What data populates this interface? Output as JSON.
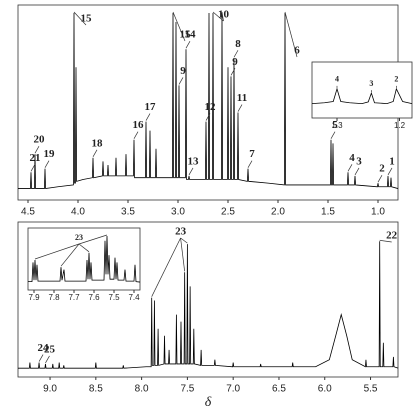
{
  "chart_data": [
    {
      "type": "line",
      "color": "#000",
      "xlim": [
        4.6,
        0.8
      ],
      "ylim": [
        0,
        100
      ],
      "xticks": [
        4.5,
        {
          "value": 4,
          "label": "4.0"
        },
        3.5,
        {
          "value": 3,
          "label": "3.0"
        },
        2.5,
        {
          "value": 2,
          "label": "2.0"
        },
        1.5,
        {
          "value": 1,
          "label": "1.0"
        }
      ],
      "x": [
        4.6,
        4.476,
        4.47,
        4.464,
        4.436,
        4.43,
        4.424,
        4.336,
        4.33,
        4.324,
        4.2,
        4.046,
        4.04,
        4.034,
        4.026,
        4.02,
        4.014,
        3.95,
        3.856,
        3.85,
        3.844,
        3.756,
        3.75,
        3.744,
        3.706,
        3.7,
        3.694,
        3.626,
        3.62,
        3.614,
        3.526,
        3.52,
        3.514,
        3.446,
        3.44,
        3.434,
        3.326,
        3.32,
        3.314,
        3.286,
        3.28,
        3.274,
        3.226,
        3.22,
        3.214,
        3.1,
        3.056,
        3.05,
        3.044,
        3.026,
        3.02,
        3.014,
        2.996,
        2.99,
        2.984,
        2.926,
        2.92,
        2.914,
        2.896,
        2.89,
        2.884,
        2.8,
        2.726,
        2.72,
        2.714,
        2.696,
        2.69,
        2.684,
        2.656,
        2.65,
        2.644,
        2.566,
        2.56,
        2.554,
        2.506,
        2.5,
        2.494,
        2.476,
        2.47,
        2.464,
        2.446,
        2.44,
        2.434,
        2.406,
        2.4,
        2.394,
        2.306,
        2.3,
        2.294,
        2.1,
        1.936,
        1.93,
        1.924,
        1.7,
        1.476,
        1.47,
        1.464,
        1.456,
        1.45,
        1.444,
        1.306,
        1.3,
        1.294,
        1.236,
        1.23,
        1.224,
        1.006,
        1.0,
        0.994,
        0.906,
        0.9,
        0.894,
        0.876,
        0.87,
        0.864,
        0.8
      ],
      "values": [
        3,
        3,
        12,
        3,
        3,
        22,
        3,
        3,
        14,
        3,
        4,
        5,
        100,
        6,
        6,
        70,
        7,
        8,
        9,
        20,
        9,
        10,
        18,
        10,
        10,
        16,
        10,
        10,
        20,
        10,
        10,
        22,
        10,
        10,
        30,
        9,
        9,
        40,
        9,
        9,
        35,
        9,
        9,
        25,
        9,
        9,
        9,
        100,
        9,
        9,
        95,
        9,
        9,
        60,
        9,
        9,
        80,
        8,
        8,
        10,
        8,
        8,
        8,
        40,
        8,
        8,
        100,
        8,
        8,
        100,
        8,
        8,
        100,
        8,
        8,
        70,
        8,
        8,
        65,
        8,
        8,
        75,
        8,
        8,
        45,
        8,
        7,
        14,
        7,
        6,
        5,
        100,
        5,
        5,
        5,
        30,
        5,
        5,
        28,
        5,
        5,
        12,
        5,
        5,
        10,
        5,
        4,
        6,
        4,
        4,
        10,
        4,
        4,
        9,
        4,
        3
      ],
      "annotations": [
        {
          "text": "21",
          "x": 4.47
        },
        {
          "text": "20",
          "x": 4.43
        },
        {
          "text": "19",
          "x": 4.33
        },
        {
          "text": "15",
          "x": 4.04
        },
        {
          "text": "18",
          "x": 3.85
        },
        {
          "text": "16",
          "x": 3.44
        },
        {
          "text": "17",
          "x": 3.32
        },
        {
          "text": "15",
          "x": 3.05
        },
        {
          "text": "9",
          "x": 2.99
        },
        {
          "text": "14",
          "x": 2.92
        },
        {
          "text": "13",
          "x": 2.89
        },
        {
          "text": "12",
          "x": 2.72
        },
        {
          "text": "10",
          "x": [
            2.65,
            2.56
          ]
        },
        {
          "text": "9",
          "x": 2.47
        },
        {
          "text": "8",
          "x": 2.44
        },
        {
          "text": "11",
          "x": 2.4
        },
        {
          "text": "7",
          "x": 2.3
        },
        {
          "text": "6",
          "x": 1.93
        },
        {
          "text": "5",
          "x": 1.47
        },
        {
          "text": "4",
          "x": 1.3
        },
        {
          "text": "3",
          "x": 1.23
        },
        {
          "text": "2",
          "x": 1.0
        },
        {
          "text": "1",
          "x": 0.9
        }
      ]
    },
    {
      "type": "line",
      "color": "#000",
      "xlim": [
        1.34,
        1.18
      ],
      "ylim": [
        0,
        100
      ],
      "xticks": [
        1.3,
        1.2
      ],
      "x": [
        1.34,
        1.32,
        1.306,
        1.3,
        1.294,
        1.28,
        1.26,
        1.25,
        1.245,
        1.24,
        1.22,
        1.21,
        1.205,
        1.2,
        1.195,
        1.18
      ],
      "values": [
        20,
        22,
        25,
        55,
        25,
        22,
        20,
        24,
        45,
        22,
        20,
        25,
        55,
        40,
        25,
        20
      ],
      "annotations": [
        {
          "text": "4",
          "x": 1.3
        },
        {
          "text": "3",
          "x": 1.245
        },
        {
          "text": "2",
          "x": 1.205
        }
      ]
    },
    {
      "type": "line",
      "color": "#000",
      "xlim": [
        9.35,
        5.2
      ],
      "ylim": [
        0,
        100
      ],
      "xlabel": "δ",
      "xticks": [
        {
          "value": 9,
          "label": "9.0"
        },
        8.5,
        {
          "value": 8,
          "label": "8.0"
        },
        7.5,
        {
          "value": 7,
          "label": "7.0"
        },
        6.5,
        {
          "value": 6,
          "label": "6.0"
        },
        5.5
      ],
      "x": [
        9.35,
        9.226,
        9.22,
        9.214,
        9.126,
        9.12,
        9.114,
        9.056,
        9.05,
        9.044,
        8.976,
        8.97,
        8.964,
        8.906,
        8.9,
        8.894,
        8.856,
        8.85,
        8.844,
        8.506,
        8.5,
        8.494,
        8.206,
        8.2,
        8.194,
        7.95,
        7.896,
        7.89,
        7.884,
        7.866,
        7.86,
        7.854,
        7.826,
        7.82,
        7.814,
        7.756,
        7.75,
        7.744,
        7.706,
        7.7,
        7.694,
        7.626,
        7.62,
        7.614,
        7.576,
        7.57,
        7.564,
        7.536,
        7.53,
        7.524,
        7.506,
        7.5,
        7.494,
        7.476,
        7.47,
        7.464,
        7.436,
        7.43,
        7.424,
        7.356,
        7.35,
        7.344,
        7.206,
        7.2,
        7.194,
        7.006,
        7.0,
        6.994,
        6.706,
        6.7,
        6.694,
        6.356,
        6.35,
        6.344,
        6.1,
        5.95,
        5.88,
        5.82,
        5.76,
        5.7,
        5.556,
        5.55,
        5.544,
        5.406,
        5.4,
        5.394,
        5.366,
        5.36,
        5.354,
        5.256,
        5.25,
        5.244,
        5.2
      ],
      "values": [
        2,
        2,
        6,
        2,
        2,
        6,
        2,
        2,
        5,
        2,
        2,
        5,
        2,
        2,
        6,
        2,
        2,
        4,
        2,
        2,
        6,
        2,
        2,
        4,
        2,
        3,
        3,
        52,
        4,
        4,
        50,
        4,
        4,
        30,
        4,
        5,
        25,
        5,
        5,
        15,
        5,
        5,
        40,
        5,
        5,
        35,
        5,
        5,
        70,
        5,
        5,
        90,
        5,
        5,
        60,
        5,
        5,
        30,
        5,
        4,
        15,
        4,
        4,
        8,
        4,
        3,
        6,
        3,
        3,
        5,
        3,
        3,
        6,
        3,
        3,
        8,
        25,
        40,
        25,
        8,
        3,
        8,
        3,
        3,
        92,
        3,
        3,
        20,
        3,
        3,
        10,
        3,
        2
      ],
      "annotations": [
        {
          "text": "24",
          "x": 9.12
        },
        {
          "text": "25",
          "x": 9.05
        },
        {
          "text": "23",
          "x": [
            7.89,
            7.53,
            7.5
          ]
        },
        {
          "text": "22",
          "x": 5.4
        }
      ]
    },
    {
      "type": "line",
      "color": "#000",
      "xlim": [
        7.93,
        7.37
      ],
      "ylim": [
        0,
        100
      ],
      "xticks": [
        7.9,
        7.8,
        7.7,
        7.6,
        7.5,
        7.4
      ],
      "x": [
        7.93,
        7.91,
        7.905,
        7.9,
        7.895,
        7.89,
        7.885,
        7.88,
        7.8,
        7.77,
        7.765,
        7.76,
        7.75,
        7.745,
        7.64,
        7.635,
        7.63,
        7.625,
        7.62,
        7.615,
        7.61,
        7.55,
        7.545,
        7.54,
        7.535,
        7.53,
        7.525,
        7.52,
        7.5,
        7.495,
        7.49,
        7.485,
        7.48,
        7.45,
        7.445,
        7.44,
        7.4,
        7.395,
        7.39,
        7.37
      ],
      "values": [
        5,
        5,
        45,
        8,
        50,
        8,
        40,
        6,
        6,
        6,
        35,
        8,
        30,
        6,
        6,
        50,
        10,
        65,
        10,
        45,
        8,
        8,
        90,
        20,
        100,
        20,
        60,
        10,
        10,
        55,
        10,
        45,
        8,
        8,
        30,
        6,
        6,
        40,
        5,
        4
      ],
      "annotations": [
        {
          "text": "23",
          "x": [
            7.895,
            7.765,
            7.625,
            7.535
          ]
        }
      ]
    }
  ]
}
